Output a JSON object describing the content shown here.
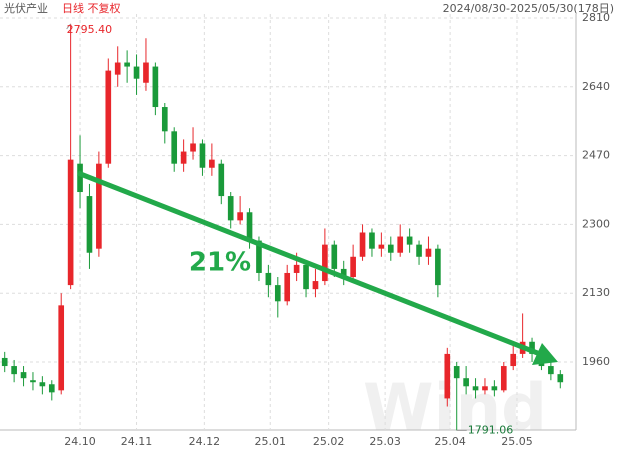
{
  "chart_data": {
    "type": "candlestick",
    "title": "光伏产业",
    "subtitle": "日线 不复权",
    "date_range": "2024/08/30-2025/05/30(178日)",
    "watermark": "Wind",
    "up_color": "#e8262b",
    "down_color": "#1a9a3a",
    "ylim": [
      1790,
      2810
    ],
    "yticks": [
      1960,
      2130,
      2300,
      2470,
      2640,
      2810
    ],
    "xlim": [
      0,
      60
    ],
    "xticks": [
      {
        "value": 8.5,
        "label": "24.10"
      },
      {
        "value": 14.5,
        "label": "24.11"
      },
      {
        "value": 21.7,
        "label": "24.12"
      },
      {
        "value": 28.7,
        "label": "25.01"
      },
      {
        "value": 34.9,
        "label": "25.02"
      },
      {
        "value": 40.9,
        "label": "25.03"
      },
      {
        "value": 47.8,
        "label": "25.04"
      },
      {
        "value": 54.9,
        "label": "25.05"
      }
    ],
    "grid": true,
    "open": [
      1970,
      1950,
      1935,
      1915,
      1910,
      1905,
      1890,
      2150,
      2450,
      2370,
      2240,
      2450,
      2670,
      2700,
      2690,
      2650,
      2690,
      2590,
      2530,
      2450,
      2480,
      2500,
      2440,
      2450,
      2370,
      2310,
      2330,
      2260,
      2180,
      2150,
      2110,
      2180,
      2200,
      2140,
      2160,
      2250,
      2190,
      2170,
      2220,
      2280,
      2240,
      2250,
      2230,
      2270,
      2250,
      2220,
      2240,
      1870,
      1950,
      1920,
      1900,
      1890,
      1900,
      1890,
      1950,
      1980,
      2010,
      1980,
      1950,
      1930
    ],
    "high": [
      1985,
      1965,
      1950,
      1935,
      1925,
      1915,
      2130,
      2795.4,
      2520,
      2400,
      2480,
      2710,
      2740,
      2730,
      2720,
      2760,
      2700,
      2600,
      2540,
      2510,
      2540,
      2510,
      2500,
      2460,
      2380,
      2370,
      2340,
      2270,
      2200,
      2170,
      2200,
      2230,
      2210,
      2190,
      2290,
      2260,
      2210,
      2250,
      2300,
      2290,
      2280,
      2270,
      2300,
      2290,
      2260,
      2270,
      2250,
      1995,
      1960,
      1950,
      1920,
      1920,
      1915,
      1960,
      2000,
      2080,
      2020,
      1990,
      1960,
      1940
    ],
    "low": [
      1935,
      1910,
      1900,
      1890,
      1880,
      1865,
      1880,
      2140,
      2340,
      2190,
      2220,
      2440,
      2640,
      2650,
      2620,
      2630,
      2570,
      2500,
      2430,
      2430,
      2460,
      2420,
      2420,
      2350,
      2290,
      2300,
      2240,
      2160,
      2120,
      2070,
      2100,
      2160,
      2120,
      2120,
      2150,
      2170,
      2150,
      2160,
      2210,
      2220,
      2220,
      2210,
      2220,
      2230,
      2200,
      2200,
      2120,
      1850,
      1791.06,
      1880,
      1870,
      1880,
      1875,
      1885,
      1940,
      1970,
      1960,
      1940,
      1915,
      1895
    ],
    "close": [
      1950,
      1930,
      1920,
      1910,
      1900,
      1885,
      2100,
      2460,
      2380,
      2230,
      2450,
      2680,
      2700,
      2690,
      2660,
      2700,
      2590,
      2530,
      2450,
      2480,
      2500,
      2440,
      2460,
      2370,
      2310,
      2330,
      2260,
      2180,
      2150,
      2110,
      2180,
      2200,
      2140,
      2160,
      2250,
      2190,
      2170,
      2220,
      2280,
      2240,
      2250,
      2230,
      2270,
      2250,
      2220,
      2240,
      2150,
      1980,
      1920,
      1900,
      1890,
      1900,
      1890,
      1950,
      1980,
      2010,
      1980,
      1950,
      1930,
      1910
    ],
    "annotations": [
      {
        "text": "2795.40"
      },
      {
        "text": "1791.06"
      },
      {
        "text": "21%"
      }
    ]
  }
}
